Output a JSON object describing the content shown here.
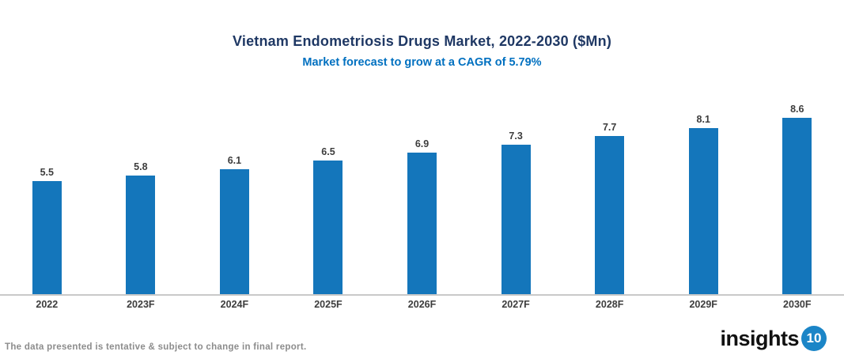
{
  "header": {
    "title": "Vietnam Endometriosis Drugs Market, 2022-2030 ($Mn)",
    "subtitle": "Market forecast to grow at a CAGR of 5.79%"
  },
  "chart_data": {
    "type": "bar",
    "categories": [
      "2022",
      "2023F",
      "2024F",
      "2025F",
      "2026F",
      "2027F",
      "2028F",
      "2029F",
      "2030F"
    ],
    "values": [
      5.5,
      5.8,
      6.1,
      6.5,
      6.9,
      7.3,
      7.7,
      8.1,
      8.6
    ],
    "title": "Vietnam Endometriosis Drugs Market, 2022-2030 ($Mn)",
    "subtitle": "Market forecast to grow at a CAGR of 5.79%",
    "xlabel": "",
    "ylabel": "",
    "ylim": [
      0,
      9
    ],
    "grid": false,
    "legend": false,
    "value_labels_shown": true,
    "bar_color": "#1476BB"
  },
  "footer": {
    "note": "The data presented is tentative & subject to change in final report.",
    "logo_text": "insights",
    "logo_badge": "10"
  },
  "colors": {
    "title": "#1F3864",
    "subtitle": "#0070C0",
    "bar": "#1476BB",
    "axis_line": "#C9C9C9",
    "data_label": "#3D3D3D",
    "footer_note": "#8C8C8C",
    "logo_badge_bg": "#1B85C7"
  }
}
